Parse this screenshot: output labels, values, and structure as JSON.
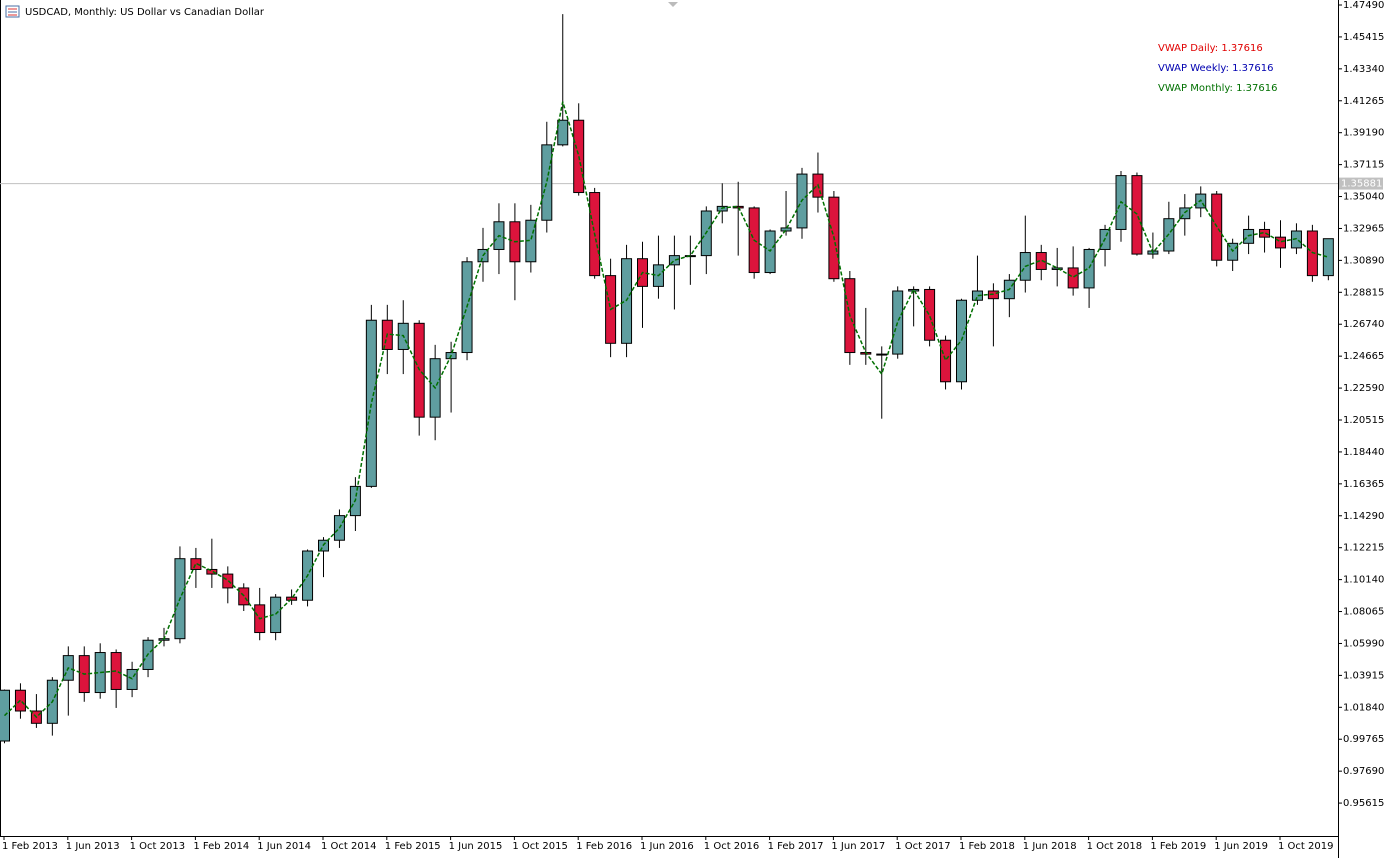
{
  "chart_data": {
    "type": "candlestick",
    "title": "USDCAD, Monthly:  US Dollar vs Canadian Dollar",
    "legend": [
      "VWAP Daily: 1.37616",
      "VWAP Weekly: 1.37616",
      "VWAP Monthly: 1.37616"
    ],
    "legend_colors": [
      "#e00000",
      "#0000b0",
      "#007000"
    ],
    "up_color": "#5f9ea0",
    "down_color": "#dc143c",
    "vwap_color": "#007000",
    "price_line": 1.35881,
    "ylim": [
      0.93475,
      1.47815
    ],
    "yticks": [
      {
        "value": 1.4749,
        "label": "1.47490"
      },
      1.45415,
      {
        "value": 1.4334,
        "label": "1.43340"
      },
      1.41265,
      {
        "value": 1.3919,
        "label": "1.39190"
      },
      1.37115,
      {
        "value": 1.3504,
        "label": "1.35040"
      },
      1.32965,
      {
        "value": 1.3089,
        "label": "1.30890"
      },
      1.28815,
      {
        "value": 1.2674,
        "label": "1.26740"
      },
      1.24665,
      {
        "value": 1.2259,
        "label": "1.22590"
      },
      1.20515,
      {
        "value": 1.1844,
        "label": "1.18440"
      },
      1.16365,
      {
        "value": 1.1429,
        "label": "1.14290"
      },
      1.12215,
      {
        "value": 1.1014,
        "label": "1.10140"
      },
      1.08065,
      {
        "value": 1.0599,
        "label": "1.05990"
      },
      1.03915,
      {
        "value": 1.0184,
        "label": "1.01840"
      },
      0.99765,
      {
        "value": 0.9769,
        "label": "0.97690"
      },
      0.95615
    ],
    "categories": [
      "1 Feb 2013",
      null,
      null,
      null,
      "1 Jun 2013",
      null,
      null,
      null,
      "1 Oct 2013",
      null,
      null,
      null,
      "1 Feb 2014",
      null,
      null,
      null,
      "1 Jun 2014",
      null,
      null,
      null,
      "1 Oct 2014",
      null,
      null,
      null,
      "1 Feb 2015",
      null,
      null,
      null,
      "1 Jun 2015",
      null,
      null,
      null,
      "1 Oct 2015",
      null,
      null,
      null,
      "1 Feb 2016",
      null,
      null,
      null,
      "1 Jun 2016",
      null,
      null,
      null,
      "1 Oct 2016",
      null,
      null,
      null,
      "1 Feb 2017",
      null,
      null,
      null,
      "1 Jun 2017",
      null,
      null,
      null,
      "1 Oct 2017",
      null,
      null,
      null,
      "1 Feb 2018",
      null,
      null,
      null,
      "1 Jun 2018",
      null,
      null,
      null,
      "1 Oct 2018",
      null,
      null,
      null,
      "1 Feb 2019",
      null,
      null,
      null,
      "1 Jun 2019",
      null,
      null,
      null,
      "1 Oct 2019",
      null,
      null,
      null
    ],
    "open": [
      0.9965,
      1.0295,
      1.016,
      1.008,
      1.036,
      1.052,
      1.028,
      1.054,
      1.03,
      1.043,
      1.062,
      1.063,
      1.115,
      1.108,
      1.105,
      1.096,
      1.085,
      1.067,
      1.09,
      1.088,
      1.12,
      1.127,
      1.143,
      1.162,
      1.27,
      1.251,
      1.268,
      1.207,
      1.245,
      1.249,
      1.308,
      1.316,
      1.334,
      1.308,
      1.335,
      1.384,
      1.4,
      1.353,
      1.299,
      1.255,
      1.31,
      1.292,
      1.306,
      1.312,
      1.312,
      1.341,
      1.344,
      1.343,
      1.301,
      1.328,
      1.33,
      1.365,
      1.35,
      1.297,
      1.249,
      1.248,
      1.248,
      1.289,
      1.29,
      1.257,
      1.23,
      1.283,
      1.289,
      1.284,
      1.296,
      1.314,
      1.303,
      1.304,
      1.291,
      1.316,
      1.329,
      1.364,
      1.313,
      1.315,
      1.336,
      1.343,
      1.352,
      1.309,
      1.32,
      1.329,
      1.324,
      1.317,
      1.328,
      1.299
    ],
    "high": [
      1.03,
      1.034,
      1.027,
      1.038,
      1.058,
      1.058,
      1.06,
      1.056,
      1.048,
      1.064,
      1.07,
      1.123,
      1.122,
      1.128,
      1.11,
      1.099,
      1.096,
      1.092,
      1.095,
      1.121,
      1.129,
      1.147,
      1.168,
      1.28,
      1.28,
      1.283,
      1.27,
      1.254,
      1.256,
      1.311,
      1.33,
      1.346,
      1.346,
      1.345,
      1.399,
      1.469,
      1.411,
      1.356,
      1.31,
      1.319,
      1.321,
      1.325,
      1.325,
      1.325,
      1.344,
      1.359,
      1.36,
      1.344,
      1.329,
      1.354,
      1.369,
      1.379,
      1.354,
      1.302,
      1.278,
      1.253,
      1.292,
      1.292,
      1.292,
      1.26,
      1.284,
      1.312,
      1.294,
      1.3,
      1.338,
      1.319,
      1.317,
      1.318,
      1.317,
      1.332,
      1.367,
      1.366,
      1.327,
      1.347,
      1.352,
      1.357,
      1.354,
      1.323,
      1.338,
      1.334,
      1.335,
      1.333,
      1.332,
      1.323
    ],
    "low": [
      0.995,
      1.011,
      1.005,
      1.0,
      1.013,
      1.022,
      1.024,
      1.018,
      1.025,
      1.038,
      1.058,
      1.06,
      1.096,
      1.096,
      1.086,
      1.081,
      1.062,
      1.062,
      1.085,
      1.084,
      1.103,
      1.122,
      1.133,
      1.161,
      1.235,
      1.235,
      1.195,
      1.192,
      1.21,
      1.244,
      1.295,
      1.3,
      1.283,
      1.301,
      1.327,
      1.383,
      1.351,
      1.297,
      1.246,
      1.246,
      1.265,
      1.284,
      1.277,
      1.293,
      1.3,
      1.333,
      1.312,
      1.297,
      1.3,
      1.325,
      1.323,
      1.34,
      1.295,
      1.241,
      1.241,
      1.206,
      1.245,
      1.266,
      1.253,
      1.225,
      1.225,
      1.28,
      1.253,
      1.272,
      1.288,
      1.296,
      1.292,
      1.286,
      1.278,
      1.305,
      1.321,
      1.312,
      1.31,
      1.313,
      1.325,
      1.337,
      1.305,
      1.302,
      1.313,
      1.314,
      1.304,
      1.313,
      1.295,
      1.296
    ],
    "close": [
      1.0295,
      1.016,
      1.008,
      1.036,
      1.052,
      1.028,
      1.054,
      1.03,
      1.043,
      1.062,
      1.063,
      1.115,
      1.108,
      1.105,
      1.096,
      1.085,
      1.067,
      1.09,
      1.088,
      1.12,
      1.127,
      1.143,
      1.162,
      1.27,
      1.251,
      1.268,
      1.207,
      1.245,
      1.249,
      1.308,
      1.316,
      1.334,
      1.308,
      1.335,
      1.384,
      1.4,
      1.353,
      1.299,
      1.255,
      1.31,
      1.292,
      1.306,
      1.312,
      1.312,
      1.341,
      1.344,
      1.343,
      1.301,
      1.328,
      1.33,
      1.365,
      1.35,
      1.297,
      1.249,
      1.248,
      1.248,
      1.289,
      1.29,
      1.257,
      1.23,
      1.283,
      1.289,
      1.284,
      1.296,
      1.314,
      1.303,
      1.304,
      1.291,
      1.316,
      1.329,
      1.364,
      1.313,
      1.315,
      1.336,
      1.343,
      1.352,
      1.309,
      1.32,
      1.329,
      1.324,
      1.317,
      1.328,
      1.299,
      1.323
    ],
    "vwap": [
      1.013,
      1.023,
      1.012,
      1.022,
      1.044,
      1.04,
      1.041,
      1.042,
      1.037,
      1.053,
      1.063,
      1.089,
      1.112,
      1.107,
      1.101,
      1.091,
      1.076,
      1.079,
      1.089,
      1.104,
      1.124,
      1.135,
      1.153,
      1.216,
      1.261,
      1.26,
      1.238,
      1.226,
      1.247,
      1.279,
      1.312,
      1.325,
      1.321,
      1.322,
      1.36,
      1.412,
      1.377,
      1.326,
      1.277,
      1.283,
      1.301,
      1.299,
      1.309,
      1.312,
      1.327,
      1.343,
      1.344,
      1.322,
      1.315,
      1.329,
      1.348,
      1.358,
      1.324,
      1.273,
      1.249,
      1.235,
      1.269,
      1.29,
      1.273,
      1.244,
      1.257,
      1.286,
      1.287,
      1.29,
      1.305,
      1.309,
      1.304,
      1.298,
      1.304,
      1.323,
      1.347,
      1.339,
      1.314,
      1.326,
      1.34,
      1.348,
      1.331,
      1.315,
      1.325,
      1.327,
      1.321,
      1.323,
      1.314,
      1.311
    ]
  }
}
